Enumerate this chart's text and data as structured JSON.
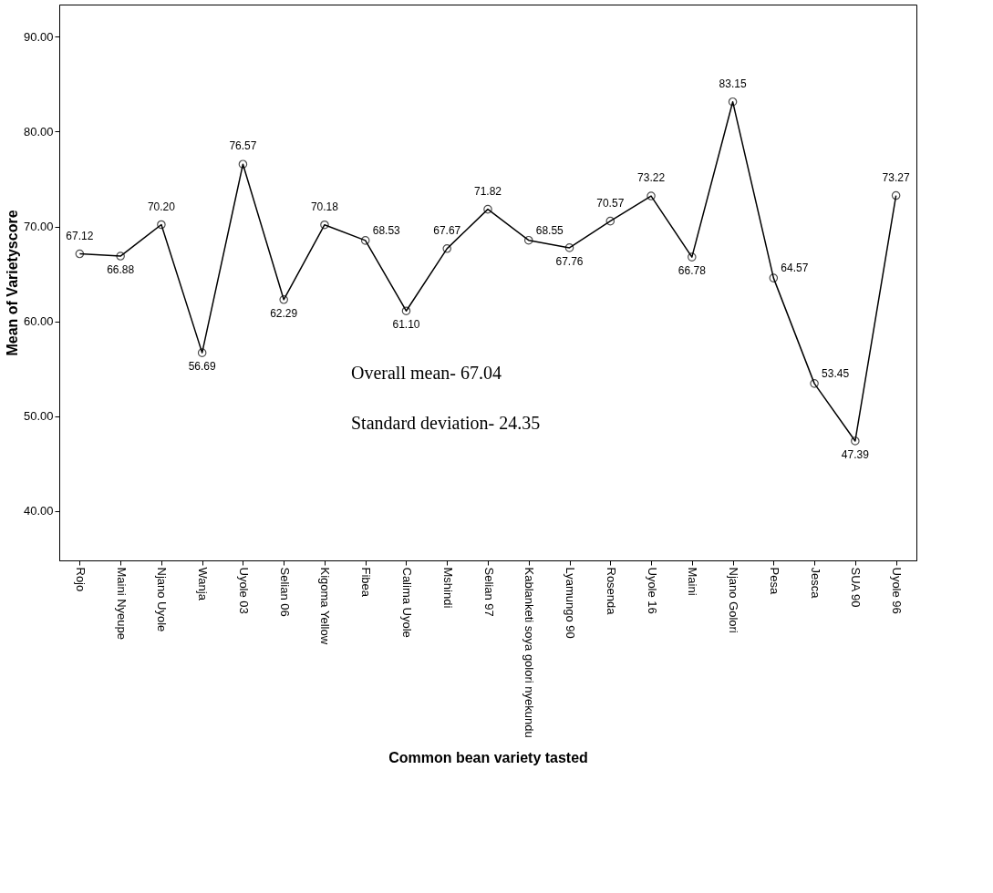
{
  "chart_data": {
    "type": "line",
    "xlabel": "Common bean variety tasted",
    "ylabel": "Mean of Varietyscore",
    "categories": [
      "Rojo",
      "Maini Nyeupe",
      "Njano Uyole",
      "Wanja",
      "Uyole 03",
      "Selian 06",
      "Kigoma Yellow",
      "Fibea",
      "Calima Uyole",
      "Mshindi",
      "Selian 97",
      "Kablanketi soya golori nyekundu",
      "Lyamungo 90",
      "Rosenda",
      "Uyole 16",
      "Maini",
      "Njano Golori",
      "Pesa",
      "Jesca",
      "SUA 90",
      "Uyole 96"
    ],
    "series": [
      {
        "color": "#000000",
        "values": [
          67.12,
          66.88,
          70.2,
          56.69,
          76.57,
          62.29,
          70.18,
          68.53,
          61.1,
          67.67,
          71.82,
          68.55,
          67.76,
          70.57,
          73.22,
          66.78,
          83.15,
          64.57,
          53.45,
          47.39,
          73.27
        ],
        "value_labels": [
          "67.12",
          "66.88",
          "70.20",
          "56.69",
          "76.57",
          "62.29",
          "70.18",
          "68.53",
          "61.10",
          "67.67",
          "71.82",
          "68.55",
          "67.76",
          "70.57",
          "73.22",
          "66.78",
          "83.15",
          "64.57",
          "53.45",
          "47.39",
          "73.27"
        ]
      }
    ],
    "ylim": [
      34.8,
      93.4
    ],
    "yticks": [
      {
        "value": 40,
        "label": "40.00"
      },
      {
        "value": 50,
        "label": "50.00"
      },
      {
        "value": 60,
        "label": "60.00"
      },
      {
        "value": 70,
        "label": "70.00"
      },
      {
        "value": 80,
        "label": "80.00"
      },
      {
        "value": 90,
        "label": "90.00"
      }
    ],
    "grid": false,
    "marker": "circle",
    "line_style": "solid",
    "annotations": [
      "Overall mean- 67.04",
      "Standard deviation- 24.35"
    ]
  }
}
